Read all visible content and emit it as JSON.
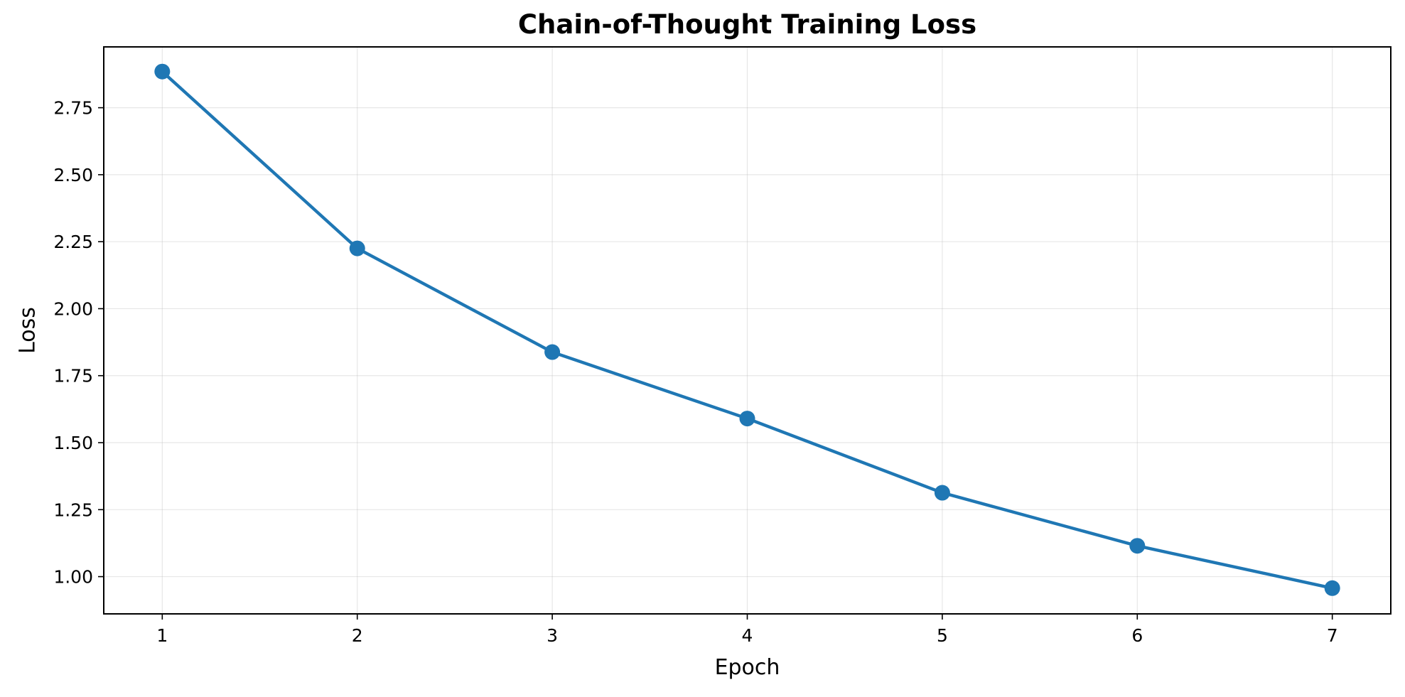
{
  "chart_data": {
    "type": "line",
    "title": "Chain-of-Thought Training Loss",
    "xlabel": "Epoch",
    "ylabel": "Loss",
    "x": [
      1,
      2,
      3,
      4,
      5,
      6,
      7
    ],
    "x_tick_labels": [
      "1",
      "2",
      "3",
      "4",
      "5",
      "6",
      "7"
    ],
    "y_ticks": [
      1.0,
      1.25,
      1.5,
      1.75,
      2.0,
      2.25,
      2.5,
      2.75
    ],
    "y_tick_labels": [
      "1.00",
      "1.25",
      "1.50",
      "1.75",
      "2.00",
      "2.25",
      "2.50",
      "2.75"
    ],
    "xlim": [
      0.7,
      7.3
    ],
    "ylim": [
      0.861,
      2.977
    ],
    "grid": true,
    "legend": "none",
    "series": [
      {
        "values": [
          2.885,
          2.225,
          1.838,
          1.59,
          1.313,
          1.115,
          0.957
        ],
        "color": "#1f77b4",
        "marker": "circle"
      }
    ]
  }
}
